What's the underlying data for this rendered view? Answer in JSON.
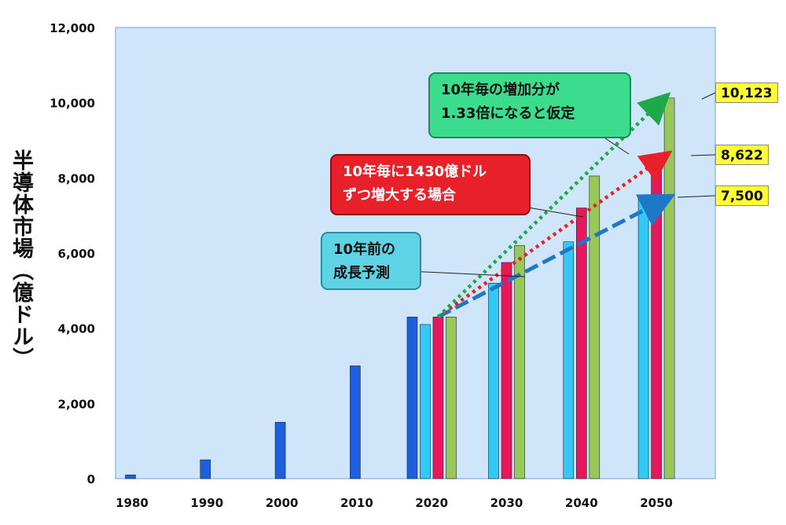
{
  "chart_data": {
    "type": "bar",
    "ylabel": "半導体市場（億ドル）",
    "ylim": [
      0,
      12000
    ],
    "yticks": [
      "0",
      "2,000",
      "4,000",
      "6,000",
      "8,000",
      "10,000",
      "12,000"
    ],
    "grid": false,
    "plot_background": "#cfe6fa",
    "categories": [
      "1980",
      "1990",
      "2000",
      "2010",
      "2020",
      "2030",
      "2040",
      "2050"
    ],
    "series": [
      {
        "color": "#1c5fe0",
        "values": [
          100,
          500,
          1500,
          3000,
          4300,
          null,
          null,
          null
        ]
      },
      {
        "color": "#33c8f5",
        "values": [
          null,
          null,
          null,
          null,
          4100,
          5200,
          6300,
          7500
        ]
      },
      {
        "color": "#e8175d",
        "values": [
          null,
          null,
          null,
          null,
          4300,
          5750,
          7200,
          8622
        ]
      },
      {
        "color": "#98c85a",
        "values": [
          null,
          null,
          null,
          null,
          4300,
          6200,
          8050,
          10123
        ]
      }
    ],
    "trend_arrows": [
      {
        "color": "#1e78c8",
        "from": [
          "2020",
          4300
        ],
        "to": [
          "2050",
          7500
        ]
      },
      {
        "color": "#e8202a",
        "from": [
          "2020",
          4300
        ],
        "to": [
          "2050",
          8622
        ]
      },
      {
        "color": "#1fa84a",
        "from": [
          "2020",
          4300
        ],
        "to": [
          "2050",
          10123
        ]
      }
    ],
    "end_labels": [
      "10,123",
      "8,622",
      "7,500"
    ],
    "annotations": {
      "green": [
        "10年毎の増加分が",
        "1.33倍になると仮定"
      ],
      "red": [
        "10年毎に1430億ドル",
        "ずつ増大する場合"
      ],
      "cyan": [
        "10年前の",
        "成長予測"
      ]
    }
  }
}
